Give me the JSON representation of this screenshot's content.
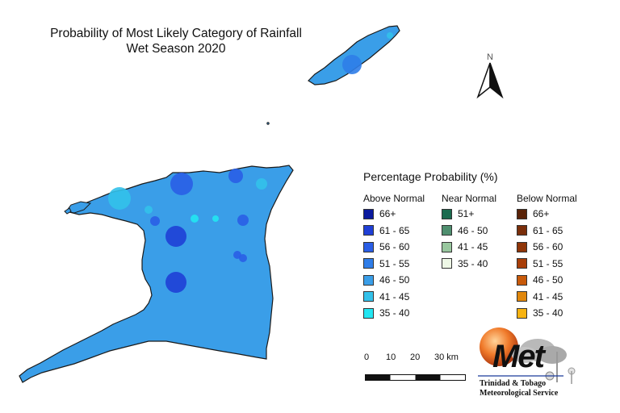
{
  "title": {
    "line1": "Probability of Most Likely Category of Rainfall",
    "line2": "Wet Season 2020"
  },
  "north_label": "N",
  "legend": {
    "title": "Percentage Probability  (%)",
    "columns": [
      {
        "name": "Above Normal",
        "items": [
          {
            "label": "66+",
            "color": "#0a1a9e"
          },
          {
            "label": "61 - 65",
            "color": "#1f3fd6"
          },
          {
            "label": "56 - 60",
            "color": "#2a5ee6"
          },
          {
            "label": "51 - 55",
            "color": "#2f7de8"
          },
          {
            "label": "46 - 50",
            "color": "#3a9ee8"
          },
          {
            "label": "41 - 45",
            "color": "#33c1ea"
          },
          {
            "label": "35 - 40",
            "color": "#22e6f2"
          }
        ]
      },
      {
        "name": "Near Normal",
        "items": [
          {
            "label": "51+",
            "color": "#1b6b4f"
          },
          {
            "label": "46 - 50",
            "color": "#4f8f6f"
          },
          {
            "label": "41 - 45",
            "color": "#98c79e"
          },
          {
            "label": "35 - 40",
            "color": "#eef8e6"
          }
        ]
      },
      {
        "name": "Below Normal",
        "items": [
          {
            "label": "66+",
            "color": "#5a2308"
          },
          {
            "label": "61 - 65",
            "color": "#7a2e0a"
          },
          {
            "label": "56 - 60",
            "color": "#8f3508"
          },
          {
            "label": "51 - 55",
            "color": "#a83e08"
          },
          {
            "label": "46 - 50",
            "color": "#c85a0a"
          },
          {
            "label": "41 - 45",
            "color": "#e0870c"
          },
          {
            "label": "35 - 40",
            "color": "#f7b311"
          }
        ]
      }
    ]
  },
  "scale_bar": {
    "ticks": [
      "0",
      "10",
      "20",
      "30 km"
    ]
  },
  "map": {
    "base_color": "#3a9ee8",
    "outline_color": "#1a1a1a"
  },
  "logo": {
    "word": "Met",
    "line1": "Trinidad & Tobago",
    "line2": "Meteorological Service"
  }
}
